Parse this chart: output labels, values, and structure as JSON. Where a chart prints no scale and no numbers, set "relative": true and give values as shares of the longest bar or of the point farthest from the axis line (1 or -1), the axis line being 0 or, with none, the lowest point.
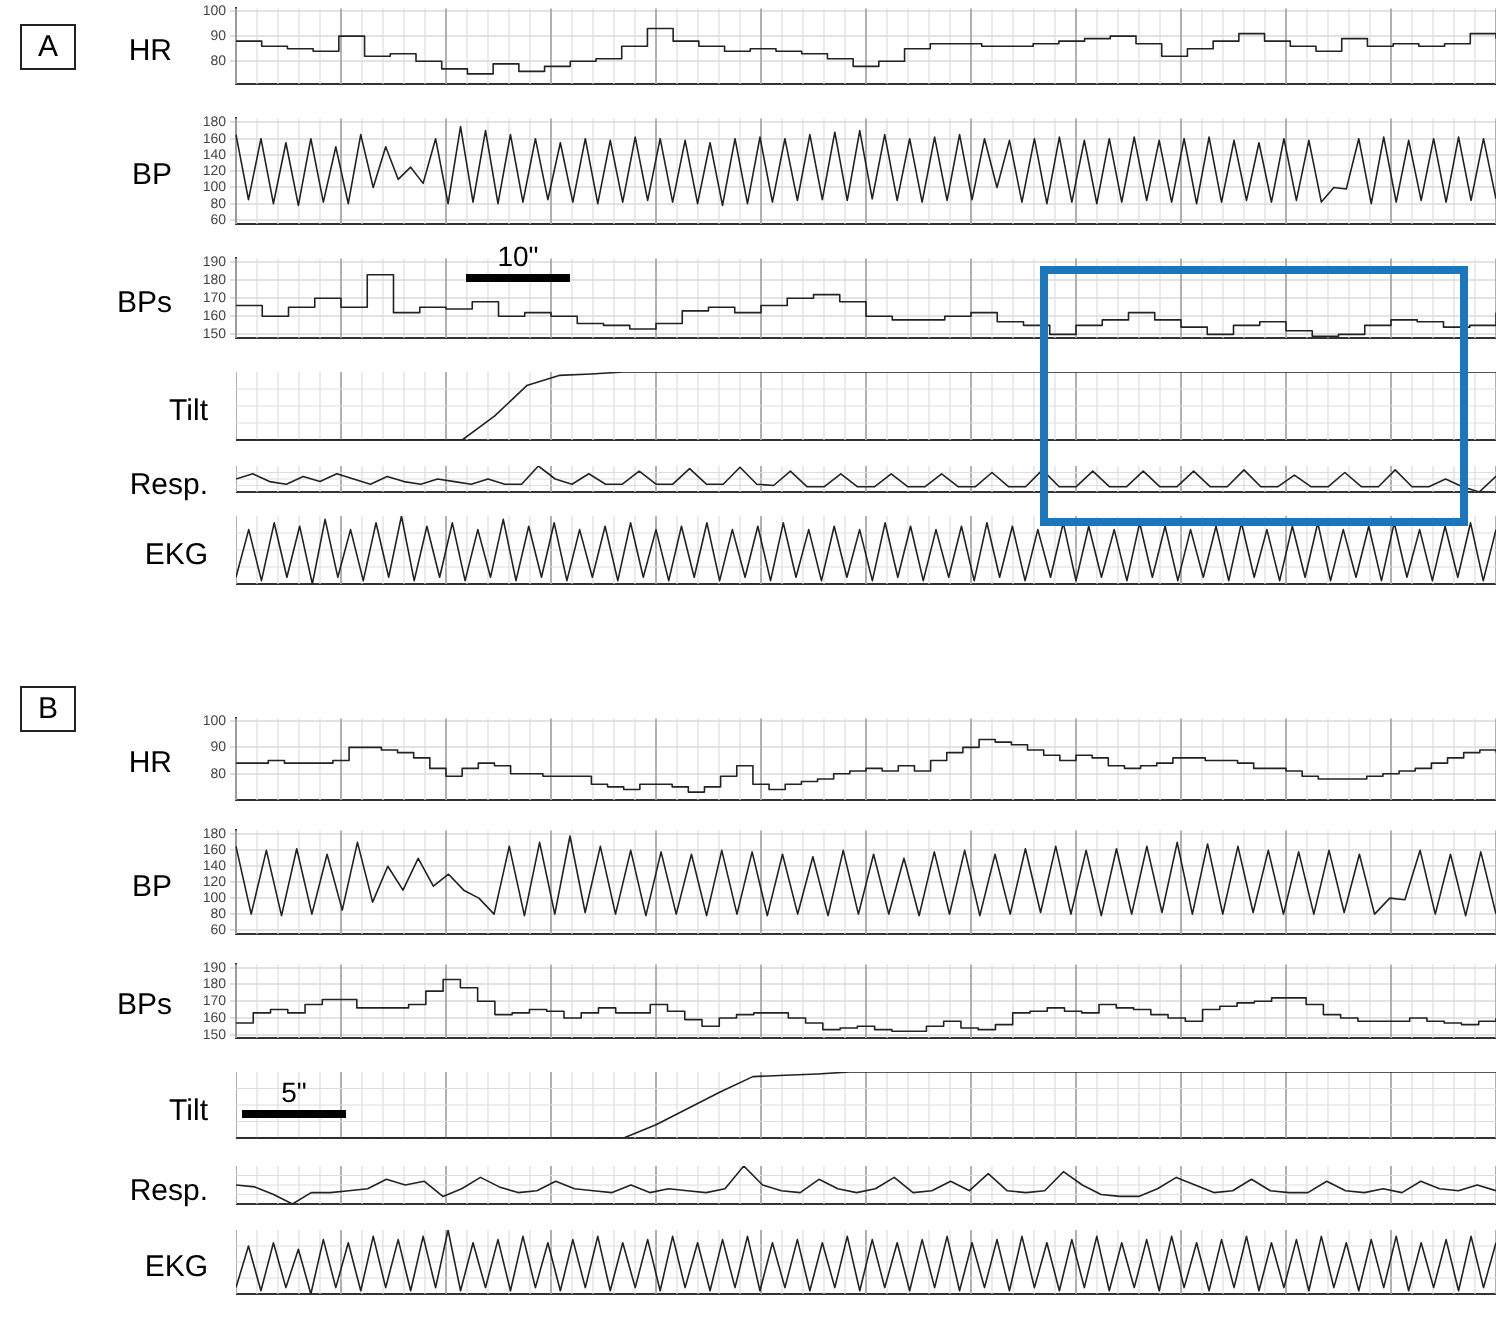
{
  "chart_data": [
    {
      "type": "step",
      "title": "A",
      "ylabel": "HR",
      "categories": [
        null,
        null,
        null,
        null,
        null,
        null,
        null,
        null,
        null,
        null,
        null,
        null,
        null,
        null,
        null,
        null,
        null,
        null,
        null,
        null,
        null,
        null,
        null,
        null,
        null,
        null,
        null,
        null,
        null,
        null,
        null,
        null,
        null,
        null,
        null,
        null,
        null,
        null,
        null,
        null,
        null,
        null,
        null,
        null,
        null,
        null,
        null,
        null,
        null,
        null
      ],
      "values": [
        88,
        86,
        85,
        84,
        90,
        82,
        83,
        80,
        77,
        75,
        79,
        76,
        78,
        80,
        81,
        86,
        93,
        88,
        86,
        84,
        85,
        84,
        83,
        81,
        78,
        80,
        85,
        87,
        87,
        86,
        86,
        87,
        88,
        89,
        90,
        87,
        82,
        85,
        88,
        91,
        88,
        86,
        84,
        89,
        86,
        87,
        86,
        87,
        91,
        89
      ],
      "color": "#222222",
      "ylim": [
        71,
        101
      ],
      "yticks": [
        80,
        90,
        100
      ],
      "grid": true,
      "tick_labels": "y"
    },
    {
      "type": "line",
      "ylabel": "BP",
      "categories": [
        null,
        null,
        null,
        null,
        null,
        null,
        null,
        null,
        null,
        null,
        null,
        null,
        null,
        null,
        null,
        null,
        null,
        null,
        null,
        null,
        null,
        null,
        null,
        null,
        null,
        null,
        null,
        null,
        null,
        null,
        null,
        null,
        null,
        null,
        null,
        null,
        null,
        null,
        null,
        null,
        null,
        null,
        null,
        null,
        null,
        null,
        null,
        null,
        null,
        null,
        null,
        null,
        null,
        null,
        null,
        null,
        null,
        null,
        null,
        null,
        null,
        null,
        null,
        null,
        null,
        null,
        null,
        null,
        null,
        null,
        null,
        null,
        null,
        null,
        null,
        null,
        null,
        null,
        null,
        null,
        null,
        null,
        null,
        null,
        null,
        null,
        null,
        null,
        null,
        null,
        null,
        null,
        null,
        null,
        null,
        null,
        null,
        null,
        null,
        null,
        null,
        null
      ],
      "values": [
        165,
        85,
        160,
        80,
        155,
        78,
        160,
        82,
        150,
        80,
        165,
        100,
        150,
        110,
        125,
        105,
        160,
        80,
        175,
        82,
        170,
        80,
        165,
        82,
        160,
        85,
        155,
        82,
        160,
        80,
        158,
        82,
        162,
        84,
        160,
        82,
        158,
        80,
        155,
        78,
        160,
        80,
        162,
        82,
        160,
        84,
        165,
        85,
        168,
        84,
        170,
        86,
        165,
        84,
        160,
        82,
        162,
        84,
        165,
        85,
        160,
        100,
        158,
        82,
        160,
        80,
        162,
        82,
        158,
        80,
        160,
        82,
        162,
        84,
        158,
        82,
        160,
        80,
        162,
        82,
        158,
        84,
        155,
        82,
        160,
        84,
        158,
        82,
        100,
        98,
        160,
        80,
        162,
        82,
        158,
        84,
        160,
        82,
        162,
        84,
        160,
        86
      ],
      "color": "#222222",
      "ylim": [
        55,
        185
      ],
      "yticks": [
        60,
        80,
        100,
        120,
        140,
        160,
        180
      ],
      "grid": true,
      "tick_labels": "y"
    },
    {
      "type": "step",
      "ylabel": "BPs",
      "annotations": [
        "10\""
      ],
      "categories": [
        null,
        null,
        null,
        null,
        null,
        null,
        null,
        null,
        null,
        null,
        null,
        null,
        null,
        null,
        null,
        null,
        null,
        null,
        null,
        null,
        null,
        null,
        null,
        null,
        null,
        null,
        null,
        null,
        null,
        null,
        null,
        null,
        null,
        null,
        null,
        null,
        null,
        null,
        null,
        null,
        null,
        null,
        null,
        null,
        null,
        null,
        null,
        null,
        null
      ],
      "values": [
        166,
        160,
        165,
        170,
        165,
        183,
        162,
        165,
        164,
        168,
        160,
        162,
        160,
        156,
        155,
        153,
        156,
        163,
        165,
        162,
        166,
        170,
        172,
        168,
        160,
        158,
        158,
        160,
        162,
        157,
        155,
        150,
        155,
        158,
        162,
        158,
        154,
        150,
        155,
        157,
        152,
        149,
        150,
        155,
        158,
        157,
        154,
        155,
        162
      ],
      "color": "#222222",
      "ylim": [
        148,
        192
      ],
      "yticks": [
        150,
        160,
        170,
        180,
        190
      ],
      "grid": true,
      "tick_labels": "y"
    },
    {
      "type": "line",
      "ylabel": "Tilt",
      "relative": true,
      "categories": [
        null,
        null,
        null,
        null,
        null,
        null,
        null,
        null,
        null,
        null,
        null,
        null,
        null,
        null,
        null,
        null,
        null,
        null,
        null,
        null,
        null,
        null,
        null,
        null,
        null,
        null,
        null,
        null,
        null,
        null,
        null,
        null,
        null,
        null,
        null,
        null,
        null,
        null,
        null,
        null
      ],
      "values": [
        0,
        0,
        0,
        0,
        0,
        0,
        0,
        0,
        0.35,
        0.8,
        0.95,
        0.97,
        1,
        1,
        1,
        1,
        1,
        1,
        1,
        1,
        1,
        1,
        1,
        1,
        1,
        1,
        1,
        1,
        1,
        1,
        1,
        1,
        1,
        1,
        1,
        1,
        1,
        1,
        1,
        1
      ],
      "color": "#222222",
      "grid": true,
      "tick_labels": false
    },
    {
      "type": "line",
      "ylabel": "Resp.",
      "relative": true,
      "categories": [
        null,
        null,
        null,
        null,
        null,
        null,
        null,
        null,
        null,
        null,
        null,
        null,
        null,
        null,
        null,
        null,
        null,
        null,
        null,
        null,
        null,
        null,
        null,
        null,
        null,
        null,
        null,
        null,
        null,
        null,
        null,
        null,
        null,
        null,
        null,
        null,
        null,
        null,
        null,
        null,
        null,
        null,
        null,
        null,
        null,
        null,
        null,
        null,
        null,
        null,
        null,
        null,
        null,
        null,
        null,
        null,
        null,
        null,
        null,
        null,
        null,
        null,
        null,
        null,
        null,
        null,
        null,
        null,
        null,
        null,
        null,
        null,
        null,
        null,
        null,
        null
      ],
      "values": [
        0.5,
        0.7,
        0.4,
        0.3,
        0.6,
        0.4,
        0.7,
        0.5,
        0.3,
        0.6,
        0.4,
        0.3,
        0.5,
        0.4,
        0.3,
        0.5,
        0.3,
        0.3,
        1.0,
        0.5,
        0.3,
        0.7,
        0.3,
        0.3,
        0.8,
        0.3,
        0.3,
        0.9,
        0.3,
        0.3,
        0.95,
        0.3,
        0.25,
        0.8,
        0.2,
        0.2,
        0.7,
        0.2,
        0.2,
        0.7,
        0.2,
        0.2,
        0.7,
        0.2,
        0.2,
        0.75,
        0.2,
        0.2,
        0.85,
        0.2,
        0.2,
        0.8,
        0.2,
        0.2,
        0.8,
        0.2,
        0.2,
        0.8,
        0.2,
        0.2,
        0.85,
        0.2,
        0.2,
        0.65,
        0.2,
        0.2,
        0.75,
        0.2,
        0.2,
        0.85,
        0.2,
        0.2,
        0.5,
        0.2,
        0.0,
        0.6
      ],
      "color": "#222222",
      "grid": true,
      "tick_labels": false
    },
    {
      "type": "line",
      "ylabel": "EKG",
      "relative": true,
      "categories": [
        null,
        null,
        null,
        null,
        null,
        null,
        null,
        null,
        null,
        null,
        null,
        null,
        null,
        null,
        null,
        null,
        null,
        null,
        null,
        null,
        null,
        null,
        null,
        null,
        null,
        null,
        null,
        null,
        null,
        null,
        null,
        null,
        null,
        null,
        null,
        null,
        null,
        null,
        null,
        null,
        null,
        null,
        null,
        null,
        null,
        null,
        null,
        null,
        null,
        null,
        null,
        null,
        null,
        null,
        null,
        null,
        null,
        null,
        null,
        null,
        null,
        null,
        null,
        null,
        null,
        null,
        null,
        null,
        null,
        null,
        null,
        null,
        null,
        null,
        null,
        null,
        null,
        null,
        null,
        null,
        null,
        null,
        null,
        null,
        null,
        null,
        null,
        null,
        null,
        null,
        null,
        null,
        null,
        null,
        null,
        null,
        null,
        null,
        null,
        null
      ],
      "values": [
        0.1,
        0.8,
        0.05,
        0.9,
        0.1,
        0.85,
        0.0,
        0.95,
        0.1,
        0.8,
        0.05,
        0.9,
        0.1,
        1.0,
        0.05,
        0.85,
        0.1,
        0.9,
        0.05,
        0.8,
        0.1,
        0.95,
        0.05,
        0.85,
        0.1,
        0.9,
        0.05,
        0.8,
        0.1,
        0.85,
        0.05,
        0.9,
        0.1,
        0.8,
        0.05,
        0.85,
        0.1,
        0.9,
        0.05,
        0.8,
        0.1,
        0.85,
        0.05,
        0.9,
        0.1,
        0.8,
        0.05,
        0.85,
        0.1,
        0.8,
        0.05,
        0.9,
        0.1,
        0.85,
        0.05,
        0.8,
        0.1,
        0.85,
        0.05,
        0.9,
        0.1,
        0.85,
        0.05,
        0.8,
        0.1,
        0.9,
        0.05,
        0.85,
        0.1,
        0.8,
        0.05,
        0.9,
        0.1,
        0.85,
        0.05,
        0.8,
        0.1,
        0.85,
        0.05,
        0.9,
        0.1,
        0.8,
        0.05,
        0.85,
        0.1,
        0.9,
        0.05,
        0.8,
        0.1,
        0.85,
        0.05,
        0.9,
        0.1,
        0.8,
        0.05,
        0.85,
        0.1,
        0.9,
        0.05,
        0.8
      ],
      "color": "#222222",
      "grid": true,
      "tick_labels": false
    },
    {
      "type": "step",
      "title": "B",
      "ylabel": "HR",
      "categories": [
        null,
        null,
        null,
        null,
        null,
        null,
        null,
        null,
        null,
        null,
        null,
        null,
        null,
        null,
        null,
        null,
        null,
        null,
        null,
        null,
        null,
        null,
        null,
        null,
        null,
        null,
        null,
        null,
        null,
        null,
        null,
        null,
        null,
        null,
        null,
        null,
        null,
        null,
        null,
        null,
        null,
        null,
        null,
        null,
        null,
        null,
        null,
        null,
        null,
        null,
        null,
        null,
        null,
        null,
        null,
        null,
        null,
        null,
        null,
        null,
        null,
        null,
        null,
        null,
        null,
        null,
        null,
        null,
        null,
        null,
        null,
        null,
        null,
        null,
        null,
        null,
        null,
        null,
        null
      ],
      "values": [
        84,
        84,
        85,
        84,
        84,
        84,
        85,
        90,
        90,
        89,
        88,
        86,
        82,
        79,
        82,
        84,
        83,
        80,
        80,
        79,
        79,
        79,
        76,
        75,
        74,
        76,
        76,
        75,
        73,
        75,
        79,
        83,
        76,
        74,
        76,
        77,
        78,
        80,
        81,
        82,
        81,
        83,
        81,
        85,
        88,
        90,
        93,
        92,
        91,
        89,
        87,
        85,
        87,
        86,
        83,
        82,
        83,
        84,
        86,
        86,
        85,
        85,
        84,
        82,
        82,
        81,
        79,
        78,
        78,
        78,
        79,
        80,
        81,
        82,
        84,
        86,
        88,
        89,
        88
      ],
      "color": "#222222",
      "ylim": [
        70,
        101
      ],
      "yticks": [
        80,
        90,
        100
      ],
      "grid": true,
      "tick_labels": "y"
    },
    {
      "type": "line",
      "ylabel": "BP",
      "categories": [
        null,
        null,
        null,
        null,
        null,
        null,
        null,
        null,
        null,
        null,
        null,
        null,
        null,
        null,
        null,
        null,
        null,
        null,
        null,
        null,
        null,
        null,
        null,
        null,
        null,
        null,
        null,
        null,
        null,
        null,
        null,
        null,
        null,
        null,
        null,
        null,
        null,
        null,
        null,
        null,
        null,
        null,
        null,
        null,
        null,
        null,
        null,
        null,
        null,
        null,
        null,
        null,
        null,
        null,
        null,
        null,
        null,
        null,
        null,
        null,
        null,
        null,
        null,
        null,
        null,
        null,
        null,
        null,
        null,
        null,
        null,
        null,
        null,
        null,
        null,
        null,
        null,
        null,
        null,
        null,
        null,
        null,
        null,
        null
      ],
      "values": [
        165,
        80,
        160,
        78,
        162,
        80,
        155,
        85,
        170,
        95,
        140,
        110,
        150,
        115,
        130,
        110,
        100,
        80,
        165,
        78,
        170,
        80,
        178,
        82,
        165,
        80,
        160,
        78,
        158,
        80,
        155,
        78,
        160,
        80,
        158,
        78,
        155,
        80,
        152,
        78,
        160,
        80,
        155,
        80,
        150,
        78,
        158,
        80,
        160,
        78,
        155,
        80,
        162,
        82,
        165,
        80,
        160,
        78,
        162,
        80,
        165,
        82,
        170,
        80,
        168,
        80,
        165,
        82,
        160,
        80,
        158,
        80,
        160,
        82,
        155,
        80,
        100,
        98,
        160,
        80,
        155,
        78,
        158,
        80
      ],
      "color": "#222222",
      "ylim": [
        55,
        185
      ],
      "yticks": [
        60,
        80,
        100,
        120,
        140,
        160,
        180
      ],
      "grid": true,
      "tick_labels": "y"
    },
    {
      "type": "step",
      "ylabel": "BPs",
      "categories": [
        null,
        null,
        null,
        null,
        null,
        null,
        null,
        null,
        null,
        null,
        null,
        null,
        null,
        null,
        null,
        null,
        null,
        null,
        null,
        null,
        null,
        null,
        null,
        null,
        null,
        null,
        null,
        null,
        null,
        null,
        null,
        null,
        null,
        null,
        null,
        null,
        null,
        null,
        null,
        null,
        null,
        null,
        null,
        null,
        null,
        null,
        null,
        null,
        null,
        null,
        null,
        null,
        null,
        null,
        null,
        null,
        null,
        null,
        null,
        null,
        null,
        null,
        null,
        null,
        null,
        null,
        null,
        null,
        null,
        null,
        null,
        null,
        null,
        null
      ],
      "values": [
        157,
        163,
        165,
        163,
        168,
        171,
        171,
        166,
        166,
        166,
        168,
        176,
        183,
        178,
        170,
        162,
        163,
        165,
        164,
        160,
        163,
        166,
        163,
        163,
        168,
        164,
        159,
        155,
        160,
        162,
        163,
        163,
        160,
        157,
        153,
        154,
        155,
        153,
        152,
        152,
        155,
        158,
        154,
        153,
        156,
        163,
        164,
        166,
        164,
        163,
        168,
        166,
        165,
        162,
        160,
        158,
        165,
        167,
        169,
        170,
        172,
        172,
        168,
        162,
        160,
        158,
        158,
        158,
        160,
        158,
        157,
        156,
        158,
        160
      ],
      "color": "#222222",
      "ylim": [
        148,
        192
      ],
      "yticks": [
        150,
        160,
        170,
        180,
        190
      ],
      "grid": true,
      "tick_labels": "y"
    },
    {
      "type": "line",
      "ylabel": "Tilt",
      "relative": true,
      "annotations": [
        "5\""
      ],
      "categories": [
        null,
        null,
        null,
        null,
        null,
        null,
        null,
        null,
        null,
        null,
        null,
        null,
        null,
        null,
        null,
        null,
        null,
        null,
        null,
        null,
        null,
        null,
        null,
        null,
        null,
        null,
        null,
        null,
        null,
        null,
        null,
        null,
        null,
        null,
        null,
        null,
        null,
        null,
        null,
        null
      ],
      "values": [
        0,
        0,
        0,
        0,
        0,
        0,
        0,
        0,
        0,
        0,
        0,
        0,
        0,
        0.2,
        0.45,
        0.7,
        0.93,
        0.95,
        0.97,
        1,
        1,
        1,
        1,
        1,
        1,
        1,
        1,
        1,
        1,
        1,
        1,
        1,
        1,
        1,
        1,
        1,
        1,
        1,
        1,
        1
      ],
      "color": "#222222",
      "grid": true,
      "tick_labels": false
    },
    {
      "type": "line",
      "ylabel": "Resp.",
      "relative": true,
      "categories": [
        null,
        null,
        null,
        null,
        null,
        null,
        null,
        null,
        null,
        null,
        null,
        null,
        null,
        null,
        null,
        null,
        null,
        null,
        null,
        null,
        null,
        null,
        null,
        null,
        null,
        null,
        null,
        null,
        null,
        null,
        null,
        null,
        null,
        null,
        null,
        null,
        null,
        null,
        null,
        null,
        null,
        null,
        null,
        null,
        null,
        null,
        null,
        null,
        null,
        null,
        null,
        null,
        null,
        null,
        null,
        null,
        null,
        null,
        null,
        null,
        null,
        null,
        null,
        null,
        null,
        null,
        null,
        null
      ],
      "values": [
        0.5,
        0.45,
        0.25,
        0.0,
        0.3,
        0.3,
        0.35,
        0.4,
        0.65,
        0.5,
        0.6,
        0.2,
        0.4,
        0.7,
        0.45,
        0.3,
        0.35,
        0.6,
        0.4,
        0.35,
        0.3,
        0.5,
        0.3,
        0.4,
        0.35,
        0.3,
        0.4,
        1.0,
        0.5,
        0.35,
        0.3,
        0.65,
        0.4,
        0.3,
        0.4,
        0.7,
        0.3,
        0.35,
        0.6,
        0.35,
        0.8,
        0.35,
        0.3,
        0.35,
        0.85,
        0.5,
        0.25,
        0.2,
        0.2,
        0.4,
        0.7,
        0.5,
        0.3,
        0.35,
        0.65,
        0.35,
        0.3,
        0.3,
        0.6,
        0.35,
        0.3,
        0.4,
        0.3,
        0.6,
        0.4,
        0.35,
        0.5,
        0.35
      ],
      "color": "#222222",
      "grid": true,
      "tick_labels": false
    },
    {
      "type": "line",
      "ylabel": "EKG",
      "relative": true,
      "categories": [
        null,
        null,
        null,
        null,
        null,
        null,
        null,
        null,
        null,
        null,
        null,
        null,
        null,
        null,
        null,
        null,
        null,
        null,
        null,
        null,
        null,
        null,
        null,
        null,
        null,
        null,
        null,
        null,
        null,
        null,
        null,
        null,
        null,
        null,
        null,
        null,
        null,
        null,
        null,
        null,
        null,
        null,
        null,
        null,
        null,
        null,
        null,
        null,
        null,
        null,
        null,
        null,
        null,
        null,
        null,
        null,
        null,
        null,
        null,
        null,
        null,
        null,
        null,
        null,
        null,
        null,
        null,
        null,
        null,
        null,
        null,
        null,
        null,
        null,
        null,
        null,
        null,
        null,
        null,
        null,
        null,
        null,
        null,
        null,
        null,
        null,
        null,
        null,
        null,
        null,
        null,
        null,
        null,
        null,
        null,
        null,
        null,
        null,
        null,
        null,
        null,
        null
      ],
      "values": [
        0.1,
        0.75,
        0.05,
        0.8,
        0.1,
        0.7,
        0.0,
        0.85,
        0.1,
        0.8,
        0.05,
        0.9,
        0.1,
        0.85,
        0.05,
        0.9,
        0.1,
        1.0,
        0.05,
        0.8,
        0.1,
        0.85,
        0.05,
        0.9,
        0.1,
        0.8,
        0.05,
        0.85,
        0.1,
        0.9,
        0.05,
        0.8,
        0.1,
        0.85,
        0.05,
        0.9,
        0.1,
        0.8,
        0.05,
        0.85,
        0.1,
        0.9,
        0.05,
        0.8,
        0.1,
        0.85,
        0.05,
        0.8,
        0.1,
        0.9,
        0.05,
        0.85,
        0.1,
        0.8,
        0.05,
        0.85,
        0.1,
        0.9,
        0.05,
        0.8,
        0.1,
        0.85,
        0.05,
        0.9,
        0.1,
        0.8,
        0.05,
        0.85,
        0.1,
        0.9,
        0.05,
        0.8,
        0.1,
        0.85,
        0.05,
        0.9,
        0.1,
        0.8,
        0.05,
        0.85,
        0.1,
        0.9,
        0.05,
        0.8,
        0.1,
        0.85,
        0.05,
        0.9,
        0.1,
        0.8,
        0.05,
        0.85,
        0.1,
        0.9,
        0.05,
        0.8,
        0.1,
        0.85,
        0.05,
        0.9,
        0.1,
        0.8
      ],
      "color": "#222222",
      "grid": true,
      "tick_labels": false
    }
  ]
}
